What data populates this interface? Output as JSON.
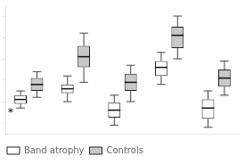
{
  "chart_data": {
    "type": "box",
    "categories": [
      null,
      null,
      null,
      null,
      null
    ],
    "series": [
      {
        "name": "Band atrophy",
        "color": "white",
        "values": [
          {
            "q1": 18,
            "median": 22,
            "q3": 26,
            "whislo": 14,
            "whishi": 30
          },
          {
            "q1": 28,
            "median": 32,
            "q3": 36,
            "whislo": 20,
            "whishi": 44
          },
          {
            "q1": 5,
            "median": 12,
            "q3": 19,
            "whislo": -2,
            "whishi": 26
          },
          {
            "q1": 44,
            "median": 52,
            "q3": 58,
            "whislo": 36,
            "whishi": 66
          },
          {
            "q1": 4,
            "median": 14,
            "q3": 22,
            "whislo": -4,
            "whishi": 30
          }
        ]
      },
      {
        "name": "Controls",
        "color": "#c8c8c8",
        "values": [
          {
            "q1": 30,
            "median": 36,
            "q3": 42,
            "whislo": 24,
            "whishi": 48
          },
          {
            "q1": 52,
            "median": 62,
            "q3": 72,
            "whislo": 38,
            "whishi": 84
          },
          {
            "q1": 30,
            "median": 38,
            "q3": 46,
            "whislo": 20,
            "whishi": 54
          },
          {
            "q1": 70,
            "median": 82,
            "q3": 90,
            "whislo": 60,
            "whishi": 100
          },
          {
            "q1": 34,
            "median": 42,
            "q3": 50,
            "whislo": 26,
            "whishi": 58
          }
        ]
      }
    ],
    "annotations": [
      {
        "text": "*",
        "y": 9
      }
    ],
    "ylim": [
      -10,
      110
    ],
    "yticks": [
      0,
      20,
      40,
      60,
      80,
      100
    ],
    "grid": false,
    "tick_labels": false,
    "legend": "lower left"
  }
}
